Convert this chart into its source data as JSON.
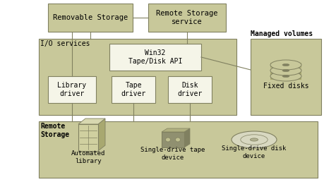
{
  "bg_color": "#ffffff",
  "dark": "#c8c89a",
  "light": "#f5f5e8",
  "border": "#808060",
  "text_color": "#000000",
  "fig_w": 4.59,
  "fig_h": 2.58,
  "dpi": 100,
  "label_io_services": "I/O services",
  "label_managed_volumes": "Managed volumes",
  "label_remote_storage": "Remote\nStorage",
  "label_fixed_disks": "Fixed disks",
  "label_automated_library": "Automated\nlibrary",
  "label_tape_device": "Single-drive tape\ndevice",
  "label_disk_device": "Single-drive disk\ndevice",
  "label_removable_storage": "Removable Storage",
  "label_remote_storage_service": "Remote Storage\nservice",
  "label_win32": "Win32\nTape/Disk API",
  "label_library_driver": "Library\ndriver",
  "label_tape_driver": "Tape\ndriver",
  "label_disk_driver": "Disk\ndriver"
}
